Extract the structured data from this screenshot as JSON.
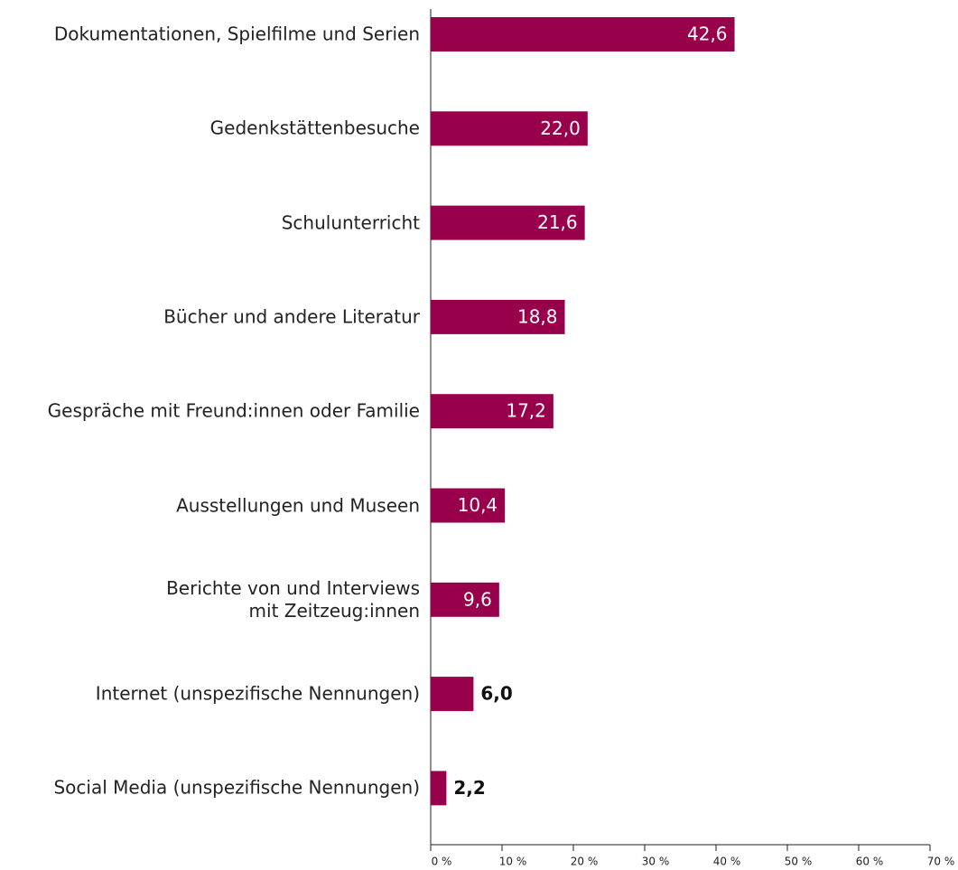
{
  "chart_data": {
    "type": "bar",
    "orientation": "horizontal",
    "categories": [
      "Dokumentationen, Spielfilme und Serien",
      "Gedenkstättenbesuche",
      "Schulunterricht",
      "Bücher und andere Literatur",
      "Gespräche mit Freund:innen oder Familie",
      "Ausstellungen und Museen",
      "Berichte von und Interviews\nmit Zeitzeug:innen",
      "Internet (unspezifische Nennungen)",
      "Social Media (unspezifische Nennungen)"
    ],
    "values": [
      42.6,
      22.0,
      21.6,
      18.8,
      17.2,
      10.4,
      9.6,
      6.0,
      2.2
    ],
    "value_labels": [
      "42,6",
      "22,0",
      "21,6",
      "18,8",
      "17,2",
      "10,4",
      "9,6",
      "6,0",
      "2,2"
    ],
    "color": "#99004c",
    "xlim": [
      0,
      70
    ],
    "xticks": [
      {
        "value": 0,
        "label": "0 %"
      },
      {
        "value": 10,
        "label": "10 %"
      },
      {
        "value": 20,
        "label": "20 %"
      },
      {
        "value": 30,
        "label": "30 %"
      },
      {
        "value": 40,
        "label": "40 %"
      },
      {
        "value": 50,
        "label": "50 %"
      },
      {
        "value": 60,
        "label": "60 %"
      },
      {
        "value": 70,
        "label": "70 %"
      }
    ]
  }
}
